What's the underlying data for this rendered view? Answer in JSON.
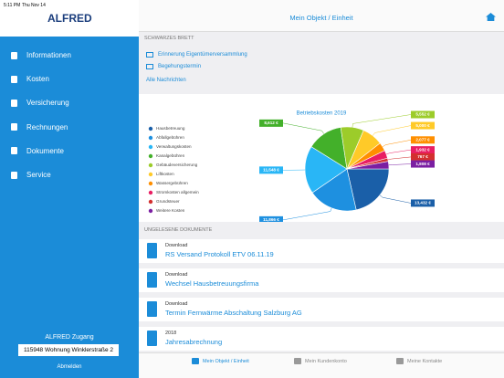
{
  "status_bar": {
    "time": "5:11 PM",
    "date": "Thu Nov 14"
  },
  "sidebar": {
    "logo": "ALFRED",
    "menu": [
      "Informationen",
      "Kosten",
      "Versicherung",
      "Rechnungen",
      "Dokumente",
      "Service"
    ],
    "access_label": "ALFRED Zugang",
    "unit": "115948 Wohnung Winklerstraße 2",
    "logout": "Abmelden"
  },
  "header": {
    "title": "Mein Objekt / Einheit"
  },
  "notice_board": {
    "heading": "SCHWARZES BRETT",
    "items": [
      "Erinnerung Eigentümerversammlung",
      "Begehungstermin"
    ],
    "all_link": "Alle Nachrichten"
  },
  "chart_data": {
    "type": "pie",
    "title": "Betriebskosten 2019",
    "categories": [
      "Hausbetreuung",
      "Abfallgebühren",
      "Verwaltungskosten",
      "Kanalgebühren",
      "Gebäudeversicherung",
      "Liftkosten",
      "Wassergebühren",
      "Stromkosten allgemein",
      "Grundsteuer",
      "Weitere Kosten"
    ],
    "values": [
      13432,
      11866,
      11548,
      8612,
      5552,
      5000,
      2077,
      1932,
      767,
      1808
    ],
    "value_labels": [
      "13,432 €",
      "11,866 €",
      "11,548 €",
      "8,612 €",
      "5,552 €",
      "5,000 €",
      "2,077 €",
      "1,932 €",
      "767 €",
      "1,808 €"
    ],
    "colors": [
      "#1a5fa8",
      "#1e90e0",
      "#29b6f6",
      "#43b02a",
      "#9ccc2a",
      "#ffca28",
      "#ff8f00",
      "#e91e63",
      "#d32f2f",
      "#7b1fa2"
    ]
  },
  "documents": {
    "heading": "UNGELESENE DOKUMENTE",
    "items": [
      {
        "label": "Download",
        "title": "RS Versand Protokoll ETV 06.11.19"
      },
      {
        "label": "Download",
        "title": "Wechsel Hausbetreuungsfirma"
      },
      {
        "label": "Download",
        "title": "Termin Fernwärme Abschaltung Salzburg AG"
      },
      {
        "label": "2018",
        "title": "Jahresabrechnung"
      }
    ]
  },
  "tab_bar": {
    "tabs": [
      "Mein Objekt / Einheit",
      "Mein Kundenkonto",
      "Meine Kontakte"
    ]
  }
}
